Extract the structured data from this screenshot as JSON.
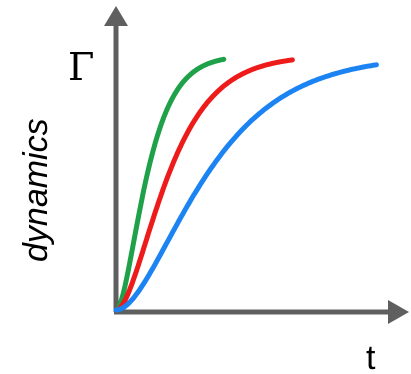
{
  "chart_data": {
    "type": "line",
    "title": "",
    "xlabel": "t",
    "ylabel": "dynamics",
    "y_annotation": "Γ",
    "xlim": [
      0,
      10
    ],
    "ylim": [
      0,
      1.1
    ],
    "grid": false,
    "legend": "none",
    "axis_color": "#5f5f5f",
    "series": [
      {
        "color": "#1ea148",
        "rate": 1.6,
        "x_end": 3.85
      },
      {
        "color": "#ee1b1b",
        "rate": 0.95,
        "x_end": 6.3
      },
      {
        "color": "#1c83f2",
        "rate": 0.55,
        "x_end": 9.3
      }
    ]
  }
}
